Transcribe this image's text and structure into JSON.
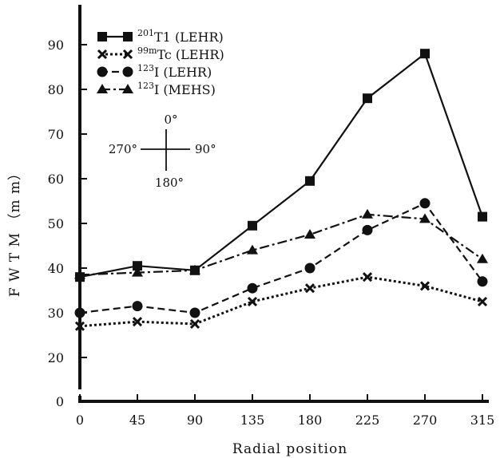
{
  "chart_data": {
    "type": "line",
    "title": "",
    "xlabel": "Radial position",
    "ylabel": "FWTM (mm)",
    "ylabel_display": "F W T M （m m）",
    "x": [
      0,
      45,
      90,
      135,
      180,
      225,
      270,
      315
    ],
    "x_ticks": [
      "0",
      "45",
      "90",
      "135",
      "180",
      "225",
      "270",
      "315"
    ],
    "y_ticks": [
      "0",
      "20",
      "30",
      "40",
      "50",
      "60",
      "70",
      "80",
      "90"
    ],
    "ylim": [
      0,
      96
    ],
    "y_axis_break": [
      0,
      20
    ],
    "grid": false,
    "legend_position": "top-left",
    "series": [
      {
        "name": "201T1 (LEHR)",
        "iso": "201",
        "label": "T1 (LEHR)",
        "marker": "square",
        "dash": "solid",
        "values": [
          38,
          40.5,
          39.5,
          49.5,
          59.5,
          78,
          88,
          51.5
        ]
      },
      {
        "name": "99mTc (LEHR)",
        "iso": "99m",
        "label": "Tc (LEHR)",
        "marker": "x",
        "dash": "dotted",
        "values": [
          27,
          28,
          27.5,
          32.5,
          35.5,
          38,
          36,
          32.5
        ]
      },
      {
        "name": "123I (LEHR)",
        "iso": "123",
        "label": "I  (LEHR)",
        "marker": "circle",
        "dash": "dashed",
        "values": [
          30,
          31.5,
          30,
          35.5,
          40,
          48.5,
          54.5,
          37
        ]
      },
      {
        "name": "123I (MEHS)",
        "iso": "123",
        "label": "I  (MEHS)",
        "marker": "triangle",
        "dash": "dashdot",
        "values": [
          38.5,
          39,
          39.5,
          44,
          47.5,
          52,
          51,
          42
        ]
      }
    ],
    "annotations": {
      "compass": {
        "top": "0°",
        "left": "270°",
        "right": "90°",
        "bottom": "180°"
      }
    }
  }
}
